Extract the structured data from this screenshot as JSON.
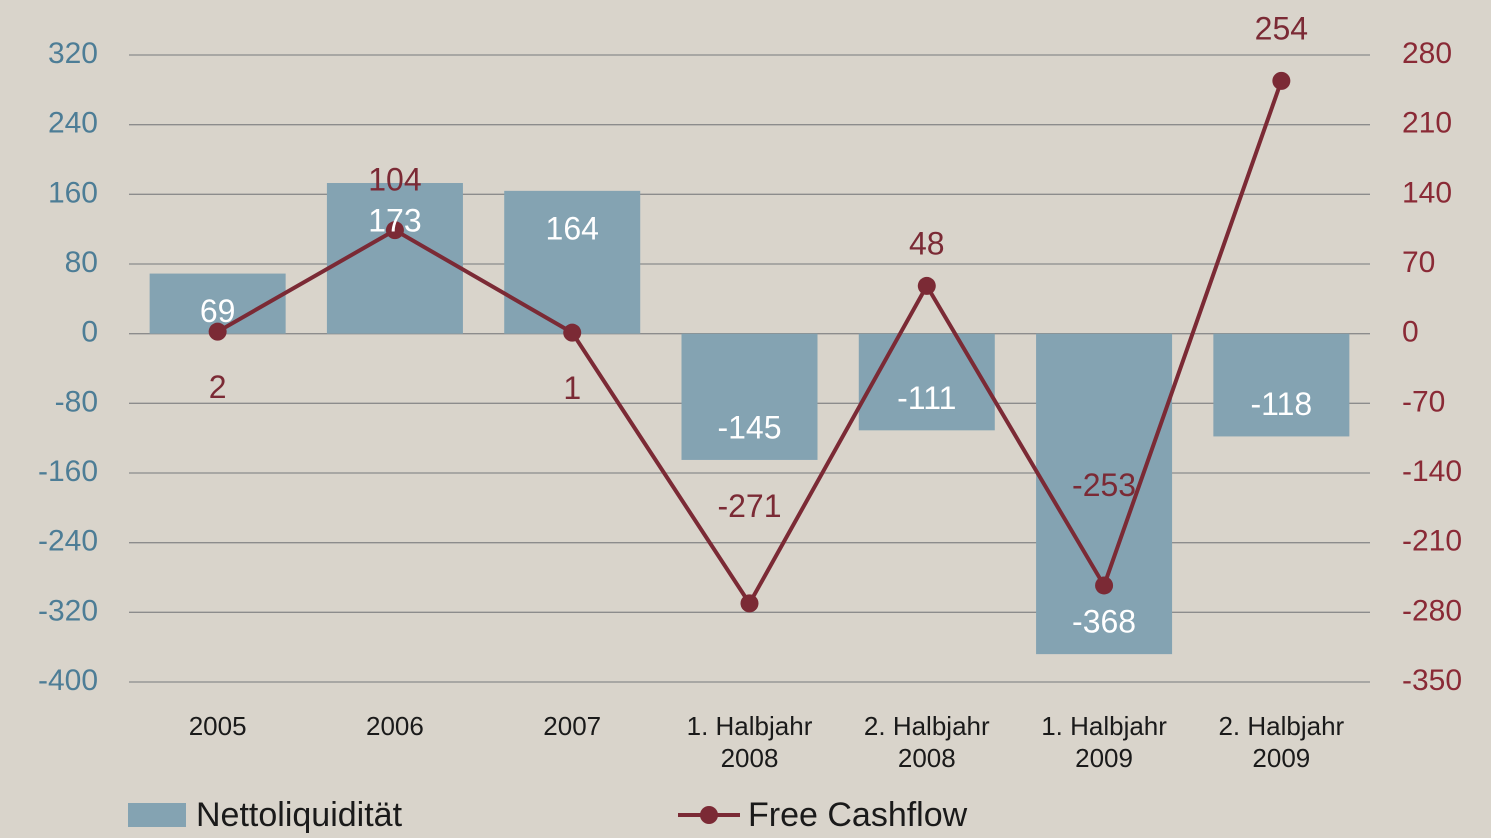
{
  "chart_data": {
    "type": "bar_line",
    "categories": [
      "2005",
      "2006",
      "2007",
      "1. Halbjahr 2008",
      "2. Halbjahr 2008",
      "1. Halbjahr 2009",
      "2. Halbjahr 2009"
    ],
    "series": [
      {
        "name": "Nettoliquidität",
        "type": "bar",
        "color": "#84a3b2",
        "values": [
          69,
          173,
          164,
          -145,
          -111,
          -368,
          -118
        ]
      },
      {
        "name": "Free Cashflow",
        "type": "line",
        "axis": "y2",
        "color": "#7b2a35",
        "values": [
          2,
          104,
          1,
          -271,
          48,
          -253,
          254
        ]
      }
    ],
    "ylim": [
      -400,
      320
    ],
    "yticks": [
      -400,
      -320,
      -240,
      -160,
      -80,
      0,
      80,
      160,
      240,
      320
    ],
    "y2lim": [
      -350,
      280
    ],
    "y2ticks": [
      -350,
      -280,
      -210,
      -140,
      -70,
      0,
      70,
      140,
      210,
      280
    ],
    "grid": true,
    "legend": "bottom"
  }
}
